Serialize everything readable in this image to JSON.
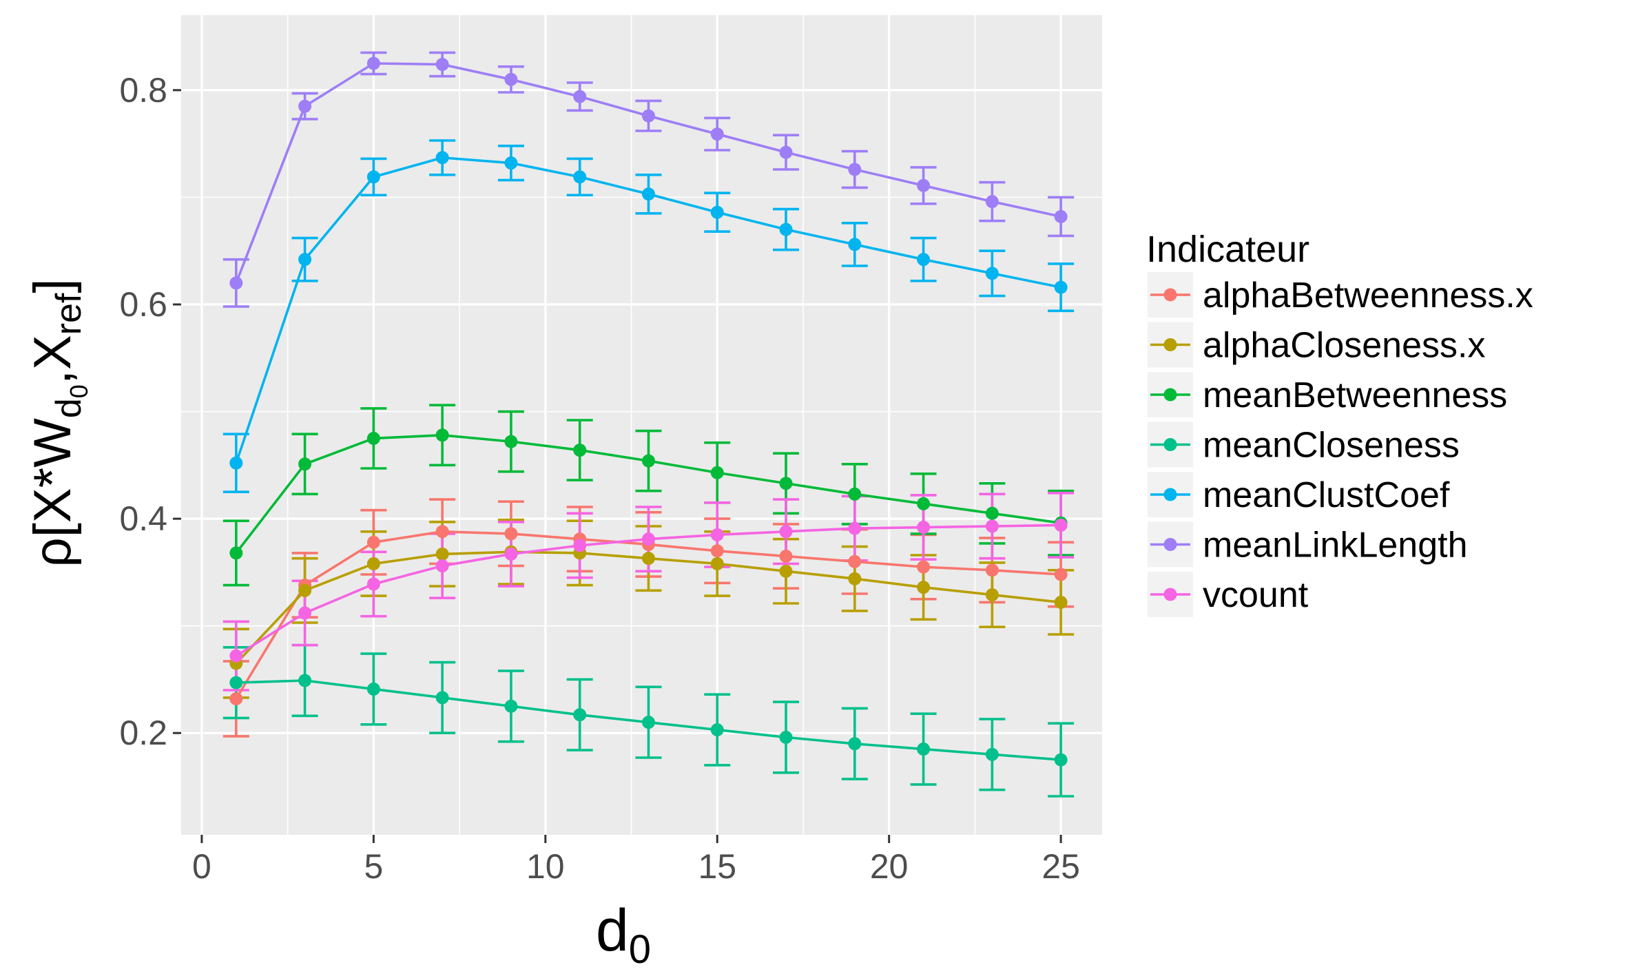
{
  "chart_data": {
    "type": "line",
    "xlabel": {
      "main": "d",
      "sub": "0"
    },
    "ylabel": {
      "main": "ρ[X*W",
      "sub1": "d",
      "subsub": "0",
      "mid": ",X",
      "sub2": "ref",
      "end": "]"
    },
    "xlim": [
      -0.6,
      26.2
    ],
    "ylim": [
      0.105,
      0.87
    ],
    "x_ticks": [
      0,
      5,
      10,
      15,
      20,
      25
    ],
    "x_tick_labels": [
      "0",
      "5",
      "10",
      "15",
      "20",
      "25"
    ],
    "y_ticks": [
      0.2,
      0.4,
      0.6,
      0.8
    ],
    "y_tick_labels": [
      "0.2",
      "0.4",
      "0.6",
      "0.8"
    ],
    "grid": true,
    "error_bars": true,
    "legend": {
      "title": "Indicateur",
      "position": "right"
    },
    "x": [
      1,
      3,
      5,
      7,
      9,
      11,
      13,
      15,
      17,
      19,
      21,
      23,
      25
    ],
    "series": [
      {
        "name": "alphaBetweenness.x",
        "color": "#F8766D",
        "values": [
          0.232,
          0.338,
          0.378,
          0.388,
          0.386,
          0.381,
          0.376,
          0.37,
          0.365,
          0.36,
          0.355,
          0.352,
          0.348
        ],
        "err": [
          0.035,
          0.03,
          0.03,
          0.03,
          0.03,
          0.03,
          0.03,
          0.03,
          0.03,
          0.03,
          0.03,
          0.03,
          0.03
        ]
      },
      {
        "name": "alphaCloseness.x",
        "color": "#B79F00",
        "values": [
          0.265,
          0.333,
          0.358,
          0.367,
          0.369,
          0.368,
          0.363,
          0.358,
          0.351,
          0.344,
          0.336,
          0.329,
          0.322
        ],
        "err": [
          0.032,
          0.03,
          0.03,
          0.03,
          0.03,
          0.03,
          0.03,
          0.03,
          0.03,
          0.03,
          0.03,
          0.03,
          0.03
        ]
      },
      {
        "name": "meanBetweenness",
        "color": "#00BA38",
        "values": [
          0.368,
          0.451,
          0.475,
          0.478,
          0.472,
          0.464,
          0.454,
          0.443,
          0.433,
          0.423,
          0.414,
          0.405,
          0.396
        ],
        "err": [
          0.03,
          0.028,
          0.028,
          0.028,
          0.028,
          0.028,
          0.028,
          0.028,
          0.028,
          0.028,
          0.028,
          0.028,
          0.03
        ]
      },
      {
        "name": "meanCloseness",
        "color": "#00C08B",
        "values": [
          0.247,
          0.249,
          0.241,
          0.233,
          0.225,
          0.217,
          0.21,
          0.203,
          0.196,
          0.19,
          0.185,
          0.18,
          0.175
        ],
        "err": [
          0.033,
          0.033,
          0.033,
          0.033,
          0.033,
          0.033,
          0.033,
          0.033,
          0.033,
          0.033,
          0.033,
          0.033,
          0.034
        ]
      },
      {
        "name": "meanClustCoef",
        "color": "#00B4EF",
        "values": [
          0.452,
          0.642,
          0.719,
          0.737,
          0.732,
          0.719,
          0.703,
          0.686,
          0.67,
          0.656,
          0.642,
          0.629,
          0.616
        ],
        "err": [
          0.027,
          0.02,
          0.017,
          0.016,
          0.016,
          0.017,
          0.018,
          0.018,
          0.019,
          0.02,
          0.02,
          0.021,
          0.022
        ]
      },
      {
        "name": "meanLinkLength",
        "color": "#9E7EF6",
        "values": [
          0.62,
          0.785,
          0.825,
          0.824,
          0.81,
          0.794,
          0.776,
          0.759,
          0.742,
          0.726,
          0.711,
          0.696,
          0.682
        ],
        "err": [
          0.022,
          0.012,
          0.01,
          0.011,
          0.012,
          0.013,
          0.014,
          0.015,
          0.016,
          0.017,
          0.017,
          0.018,
          0.018
        ]
      },
      {
        "name": "vcount",
        "color": "#F564E3",
        "values": [
          0.272,
          0.312,
          0.339,
          0.356,
          0.367,
          0.375,
          0.381,
          0.385,
          0.388,
          0.391,
          0.392,
          0.393,
          0.394
        ],
        "err": [
          0.032,
          0.03,
          0.03,
          0.03,
          0.03,
          0.03,
          0.03,
          0.03,
          0.03,
          0.03,
          0.03,
          0.03,
          0.03
        ]
      }
    ]
  }
}
